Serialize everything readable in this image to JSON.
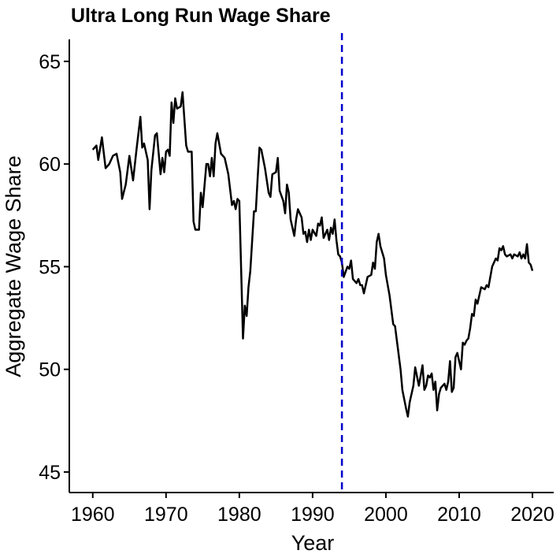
{
  "chart_data": {
    "type": "line",
    "title": "Ultra Long Run Wage Share",
    "x_label": "Year",
    "y_label": "Aggregate Wage Share",
    "color": "#000000",
    "xlim": [
      1956.8,
      2022.9
    ],
    "ylim": [
      44.0,
      66.07
    ],
    "xticks": [
      1960,
      1970,
      1980,
      1990,
      2000,
      2010,
      2020
    ],
    "yticks": [
      45,
      50,
      55,
      60,
      65
    ],
    "vline": {
      "x": 1994,
      "color": "#0000cc",
      "dashed": true
    },
    "x": [
      1960.0,
      1960.5,
      1960.75,
      1961.25,
      1961.75,
      1962.25,
      1962.75,
      1963.25,
      1963.75,
      1964.0,
      1964.5,
      1965.0,
      1965.5,
      1966.0,
      1966.5,
      1966.75,
      1967.0,
      1967.5,
      1967.75,
      1968.0,
      1968.5,
      1968.75,
      1969.0,
      1969.25,
      1969.5,
      1969.75,
      1970.0,
      1970.25,
      1970.5,
      1970.75,
      1971.0,
      1971.25,
      1971.5,
      1972.0,
      1972.25,
      1972.75,
      1973.0,
      1973.5,
      1973.75,
      1974.0,
      1974.5,
      1974.75,
      1975.0,
      1975.5,
      1975.75,
      1976.0,
      1976.25,
      1976.5,
      1976.75,
      1977.0,
      1977.5,
      1978.0,
      1978.5,
      1979.0,
      1979.25,
      1979.5,
      1979.75,
      1980.0,
      1980.5,
      1980.75,
      1981.0,
      1981.25,
      1981.5,
      1982.0,
      1982.25,
      1982.5,
      1982.75,
      1983.0,
      1983.5,
      1984.0,
      1984.25,
      1984.5,
      1985.0,
      1985.25,
      1985.5,
      1986.0,
      1986.25,
      1986.5,
      1986.75,
      1987.0,
      1987.5,
      1987.75,
      1988.0,
      1988.5,
      1988.75,
      1989.0,
      1989.25,
      1989.5,
      1989.75,
      1990.0,
      1990.5,
      1990.75,
      1991.0,
      1991.25,
      1991.5,
      1992.0,
      1992.25,
      1992.5,
      1992.75,
      1993.0,
      1993.25,
      1993.5,
      1993.75,
      1994.0,
      1994.25,
      1994.75,
      1995.0,
      1995.25,
      1995.5,
      1996.0,
      1996.25,
      1996.5,
      1996.75,
      1997.0,
      1997.5,
      1998.0,
      1998.25,
      1998.5,
      1998.75,
      1999.0,
      1999.25,
      1999.75,
      2000.0,
      2000.5,
      2001.0,
      2001.25,
      2001.5,
      2002.0,
      2002.25,
      2002.75,
      2003.0,
      2003.25,
      2003.75,
      2004.0,
      2004.5,
      2005.0,
      2005.25,
      2005.5,
      2005.75,
      2006.0,
      2006.25,
      2006.5,
      2006.75,
      2007.0,
      2007.25,
      2007.5,
      2008.0,
      2008.25,
      2008.5,
      2008.75,
      2009.0,
      2009.25,
      2009.5,
      2009.75,
      2010.0,
      2010.25,
      2010.5,
      2010.75,
      2011.0,
      2011.25,
      2011.5,
      2011.75,
      2012.0,
      2012.25,
      2012.5,
      2013.0,
      2013.5,
      2013.75,
      2014.0,
      2014.5,
      2015.0,
      2015.25,
      2015.5,
      2015.75,
      2016.0,
      2016.25,
      2016.5,
      2017.0,
      2017.25,
      2017.5,
      2018.0,
      2018.25,
      2018.5,
      2018.75,
      2019.0,
      2019.25,
      2019.5,
      2019.75,
      2020.0
    ],
    "values": [
      60.7,
      60.9,
      60.2,
      61.3,
      59.8,
      60.0,
      60.4,
      60.5,
      59.6,
      58.3,
      59.0,
      60.4,
      59.2,
      60.8,
      62.3,
      60.8,
      61.0,
      60.2,
      57.8,
      59.7,
      61.4,
      61.5,
      60.5,
      59.5,
      60.3,
      59.6,
      60.6,
      60.7,
      60.4,
      63.0,
      62.0,
      63.2,
      62.7,
      62.8,
      63.5,
      60.9,
      60.6,
      60.6,
      57.2,
      56.8,
      56.8,
      58.6,
      57.9,
      60.0,
      60.0,
      59.4,
      60.3,
      59.4,
      61.0,
      61.5,
      60.5,
      60.3,
      59.5,
      58.0,
      58.2,
      57.8,
      58.3,
      58.2,
      51.5,
      53.1,
      52.6,
      54.0,
      54.8,
      57.7,
      57.7,
      59.3,
      60.8,
      60.7,
      59.8,
      58.6,
      58.4,
      59.5,
      59.6,
      60.3,
      58.7,
      58.2,
      57.6,
      59.0,
      58.6,
      57.3,
      56.5,
      57.3,
      57.8,
      57.4,
      56.6,
      56.7,
      56.2,
      56.8,
      56.3,
      56.8,
      56.5,
      57.1,
      57.0,
      57.4,
      56.4,
      56.8,
      56.3,
      56.9,
      56.6,
      57.3,
      56.3,
      55.6,
      55.5,
      55.2,
      54.5,
      55.0,
      54.9,
      55.3,
      54.4,
      54.2,
      54.4,
      54.1,
      54.1,
      53.7,
      54.5,
      54.6,
      55.2,
      54.9,
      56.2,
      56.6,
      56.0,
      55.4,
      54.6,
      53.6,
      52.2,
      52.1,
      51.4,
      50.0,
      49.0,
      48.1,
      47.7,
      48.4,
      49.2,
      50.1,
      49.2,
      50.2,
      49.0,
      49.2,
      49.7,
      49.6,
      49.8,
      49.0,
      49.4,
      48.0,
      48.8,
      49.1,
      49.3,
      49.0,
      49.4,
      50.4,
      48.9,
      49.1,
      50.6,
      50.8,
      50.4,
      50.0,
      51.3,
      51.2,
      51.4,
      51.5,
      52.0,
      52.7,
      52.6,
      53.4,
      53.2,
      54.0,
      53.9,
      54.1,
      54.0,
      55.0,
      55.4,
      55.3,
      55.9,
      55.8,
      56.0,
      55.6,
      55.5,
      55.6,
      55.4,
      55.6,
      55.5,
      55.7,
      55.4,
      55.6,
      55.4,
      56.1,
      55.2,
      55.1,
      54.8
    ]
  }
}
